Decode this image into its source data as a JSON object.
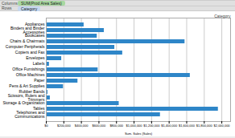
{
  "chart_data": {
    "type": "bar",
    "orientation": "horizontal",
    "categories": [
      "Appliances",
      "Binders and Binder\nAccessories",
      "Bookcases",
      "Chairs & Chairmats",
      "Computer Peripherals",
      "Copiers and Fax",
      "Envelopes",
      "Labels",
      "Office Furnishings",
      "Office Machines",
      "Paper",
      "Pens & Art Supplies",
      "Rubber Bands",
      "Scissors, Rulers and\nTrimmers",
      "Storage & Organization",
      "Tables",
      "Telephones and\nCommunications"
    ],
    "values": [
      430000,
      660000,
      580000,
      1580000,
      780000,
      870000,
      175000,
      35000,
      590000,
      1640000,
      360000,
      195000,
      18000,
      45000,
      830000,
      1960000,
      1300000
    ],
    "color": "#2E86C8",
    "xlabel": "Sum. Sales (Sales)",
    "xlim": [
      0,
      2100000
    ],
    "xticks": [
      {
        "value": 0,
        "label": "$0"
      },
      {
        "value": 200000,
        "label": "$200,000"
      },
      {
        "value": 400000,
        "label": "$400,000"
      },
      {
        "value": 600000,
        "label": "$600,000"
      },
      {
        "value": 800000,
        "label": "$800,000"
      },
      {
        "value": 1000000,
        "label": "$1,000,000"
      },
      {
        "value": 1200000,
        "label": "$1,200,000"
      },
      {
        "value": 1400000,
        "label": "$1,400,000"
      },
      {
        "value": 1600000,
        "label": "$1,600,000"
      },
      {
        "value": 1800000,
        "label": "$1,800,000"
      },
      {
        "value": 2000000,
        "label": "$2,000,000"
      }
    ],
    "grid": true,
    "annotations": [
      "Columns",
      "SUM(Prod Area Sales)",
      "Rows",
      "Category",
      "Category"
    ]
  }
}
